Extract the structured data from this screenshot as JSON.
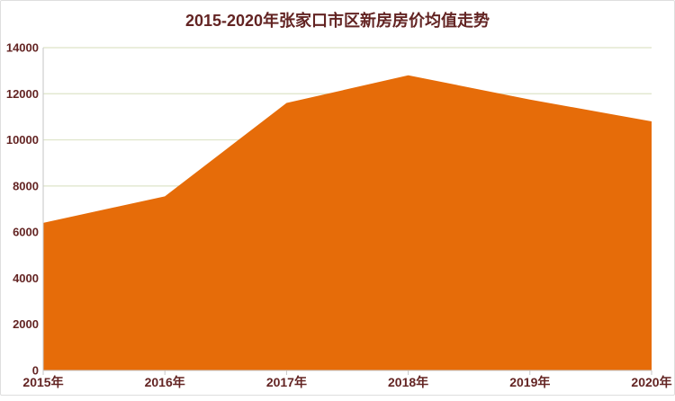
{
  "chart_data": {
    "type": "area",
    "title": "2015-2020年张家口市区新房房价均值走势",
    "categories": [
      "2015年",
      "2016年",
      "2017年",
      "2018年",
      "2019年",
      "2020年"
    ],
    "values": [
      6400,
      7550,
      11600,
      12800,
      11750,
      10800
    ],
    "xlabel": "",
    "ylabel": "",
    "ylim": [
      0,
      14000
    ],
    "ytick_step": 2000,
    "ytick_labels": [
      "0",
      "2000",
      "4000",
      "6000",
      "8000",
      "10000",
      "12000",
      "14000"
    ],
    "grid": "horizontal",
    "legend": "none",
    "colors": {
      "area_fill": "#E66C09",
      "label_text": "#632423",
      "gridline": "#DEE4C8",
      "axis_line": "#C6C6C6",
      "card_border": "#DEDEDE",
      "background": "#FFFFFF"
    }
  }
}
